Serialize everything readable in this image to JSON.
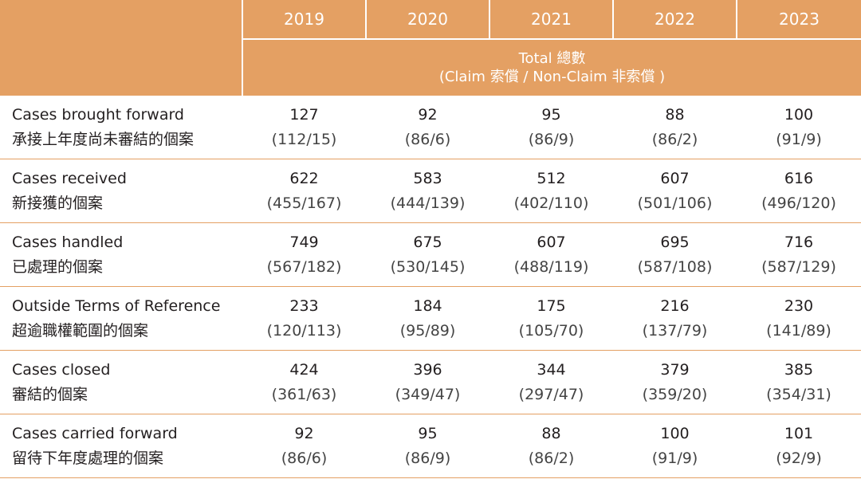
{
  "header": {
    "years": [
      "2019",
      "2020",
      "2021",
      "2022",
      "2023"
    ],
    "total_line1": "Total 總數",
    "total_line2": "(Claim 索償 / Non-Claim 非索償 )"
  },
  "rows": [
    {
      "label_en": "Cases brought forward",
      "label_zh": "承接上年度尚未審結的個案",
      "cells": [
        {
          "total": "127",
          "split": "(112/15)"
        },
        {
          "total": "92",
          "split": "(86/6)"
        },
        {
          "total": "95",
          "split": "(86/9)"
        },
        {
          "total": "88",
          "split": "(86/2)"
        },
        {
          "total": "100",
          "split": "(91/9)"
        }
      ]
    },
    {
      "label_en": "Cases received",
      "label_zh": "新接獲的個案",
      "cells": [
        {
          "total": "622",
          "split": "(455/167)"
        },
        {
          "total": "583",
          "split": "(444/139)"
        },
        {
          "total": "512",
          "split": "(402/110)"
        },
        {
          "total": "607",
          "split": "(501/106)"
        },
        {
          "total": "616",
          "split": "(496/120)"
        }
      ]
    },
    {
      "label_en": "Cases handled",
      "label_zh": "已處理的個案",
      "cells": [
        {
          "total": "749",
          "split": "(567/182)"
        },
        {
          "total": "675",
          "split": "(530/145)"
        },
        {
          "total": "607",
          "split": "(488/119)"
        },
        {
          "total": "695",
          "split": "(587/108)"
        },
        {
          "total": "716",
          "split": "(587/129)"
        }
      ]
    },
    {
      "label_en": "Outside Terms of Reference",
      "label_zh": "超逾職權範圍的個案",
      "cells": [
        {
          "total": "233",
          "split": "(120/113)"
        },
        {
          "total": "184",
          "split": "(95/89)"
        },
        {
          "total": "175",
          "split": "(105/70)"
        },
        {
          "total": "216",
          "split": "(137/79)"
        },
        {
          "total": "230",
          "split": "(141/89)"
        }
      ]
    },
    {
      "label_en": "Cases closed",
      "label_zh": "審結的個案",
      "cells": [
        {
          "total": "424",
          "split": "(361/63)"
        },
        {
          "total": "396",
          "split": "(349/47)"
        },
        {
          "total": "344",
          "split": "(297/47)"
        },
        {
          "total": "379",
          "split": "(359/20)"
        },
        {
          "total": "385",
          "split": "(354/31)"
        }
      ]
    },
    {
      "label_en": "Cases carried forward",
      "label_zh": "留待下年度處理的個案",
      "cells": [
        {
          "total": "92",
          "split": "(86/6)"
        },
        {
          "total": "95",
          "split": "(86/9)"
        },
        {
          "total": "88",
          "split": "(86/2)"
        },
        {
          "total": "100",
          "split": "(91/9)"
        },
        {
          "total": "101",
          "split": "(92/9)"
        }
      ]
    }
  ],
  "colors": {
    "header_bg": "#e4a063",
    "header_text": "#ffffff",
    "rule": "#e4a063",
    "body_text": "#231f20"
  }
}
